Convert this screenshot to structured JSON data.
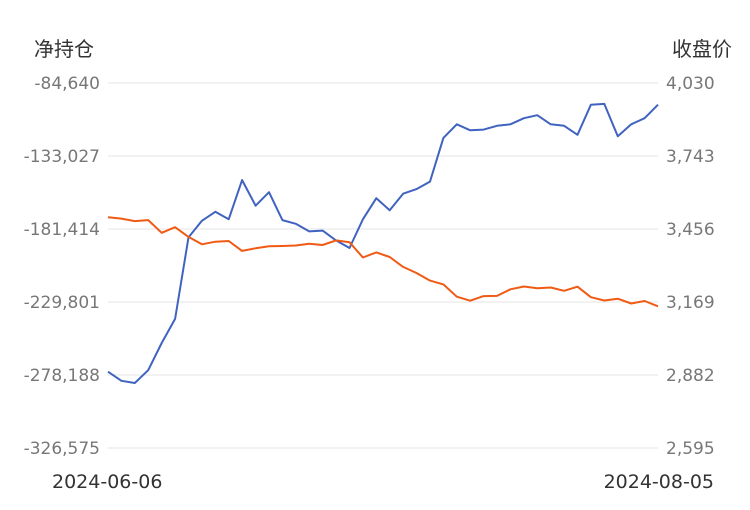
{
  "chart_data": {
    "type": "line",
    "y_left_label": "净持仓",
    "y_right_label": "收盘价",
    "y_left_ticks": [
      "-84,640",
      "-133,027",
      "-181,414",
      "-229,801",
      "-278,188",
      "-326,575"
    ],
    "y_right_ticks": [
      "4,030",
      "3,743",
      "3,456",
      "3,169",
      "2,882",
      "2,595"
    ],
    "ylim_left": [
      -326575,
      -84640
    ],
    "ylim_right": [
      2595,
      4030
    ],
    "x_labels": [
      "2024-06-06",
      "2024-08-05"
    ],
    "grid": true,
    "series": [
      {
        "color": "#4063c0",
        "axis": "left",
        "values": [
          -276000,
          -282000,
          -283500,
          -275000,
          -257000,
          -241000,
          -187000,
          -176000,
          -170000,
          -175000,
          -149000,
          -166000,
          -157000,
          -175500,
          -178000,
          -183000,
          -182500,
          -189000,
          -194000,
          -175000,
          -161000,
          -169000,
          -158000,
          -155000,
          -150000,
          -121000,
          -112000,
          -116000,
          -115500,
          -113000,
          -112000,
          -108000,
          -106000,
          -112000,
          -113000,
          -119000,
          -99000,
          -98500,
          -120000,
          -112000,
          -108000,
          -99000
        ]
      },
      {
        "color": "#f05a14",
        "axis": "right",
        "values": [
          3502,
          3497,
          3487,
          3491,
          3441,
          3463,
          3425,
          3396,
          3406,
          3409,
          3370,
          3380,
          3388,
          3389,
          3391,
          3398,
          3393,
          3411,
          3404,
          3344,
          3364,
          3346,
          3307,
          3283,
          3253,
          3238,
          3190,
          3174,
          3192,
          3193,
          3219,
          3230,
          3223,
          3226,
          3213,
          3229,
          3188,
          3175,
          3182,
          3163,
          3173,
          3152
        ]
      }
    ]
  }
}
